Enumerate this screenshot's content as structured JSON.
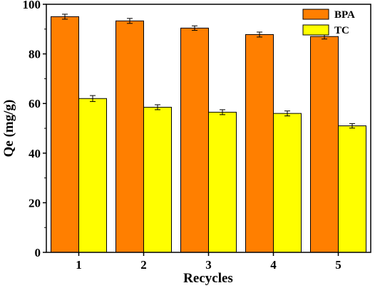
{
  "chart_data": {
    "type": "bar",
    "categories": [
      "1",
      "2",
      "3",
      "4",
      "5"
    ],
    "series": [
      {
        "name": "BPA",
        "values": [
          95.0,
          93.3,
          90.4,
          87.8,
          87.0
        ],
        "errors": [
          1.0,
          1.0,
          0.9,
          1.0,
          1.0
        ],
        "color": "#ff7f00"
      },
      {
        "name": "TC",
        "values": [
          62.0,
          58.5,
          56.5,
          56.0,
          51.0
        ],
        "errors": [
          1.2,
          1.0,
          1.0,
          1.0,
          0.9
        ],
        "color": "#ffff00"
      }
    ],
    "xlabel": "Recycles",
    "ylabel": "Qe (mg/g)",
    "ylim": [
      0,
      100
    ],
    "yticks": [
      "0",
      "20",
      "40",
      "60",
      "80",
      "100"
    ],
    "grid": false,
    "legend": "top-right"
  }
}
